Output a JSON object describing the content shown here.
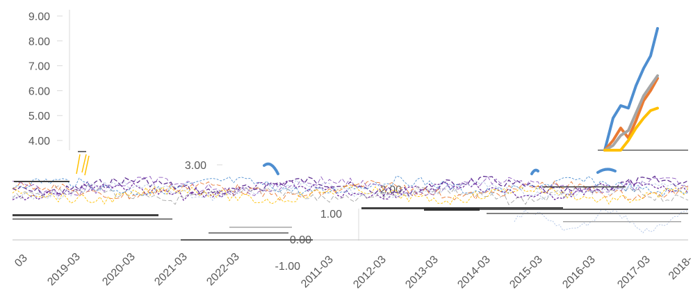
{
  "chart_data": {
    "type": "line",
    "yticks_upper": [
      "9.00",
      "8.00",
      "7.00",
      "6.00",
      "5.00",
      "4.00"
    ],
    "yticks_middle": [
      "3.00",
      "2.00",
      "1.00",
      "0.00",
      "-1.00"
    ],
    "xticks_upper": [
      "2019-03",
      "2020-03",
      "2021-03",
      "2022-03"
    ],
    "xticks_lower": [
      "2011-03",
      "2012-03",
      "2013-03",
      "2014-03",
      "2015-03",
      "2016-03",
      "2017-03",
      "2018-"
    ],
    "ylim": [
      -1,
      9
    ],
    "colors": [
      "#4e8ed0",
      "#ea7a33",
      "#a5a5a5",
      "#ffc000",
      "#5d2d91"
    ],
    "series": [
      {
        "values": [
          3.1,
          4.9,
          5.4,
          5.3,
          6.2,
          6.9,
          7.4,
          8.5
        ]
      },
      {
        "values": [
          3.4,
          4.0,
          4.5,
          4.1,
          4.8,
          5.6,
          6.0,
          6.5
        ]
      },
      {
        "values": [
          3.5,
          3.8,
          4.2,
          4.4,
          5.1,
          5.8,
          6.2,
          6.6
        ]
      },
      {
        "values": [
          3.2,
          3.3,
          3.6,
          4.0,
          4.5,
          4.9,
          5.2,
          5.3
        ]
      }
    ]
  }
}
